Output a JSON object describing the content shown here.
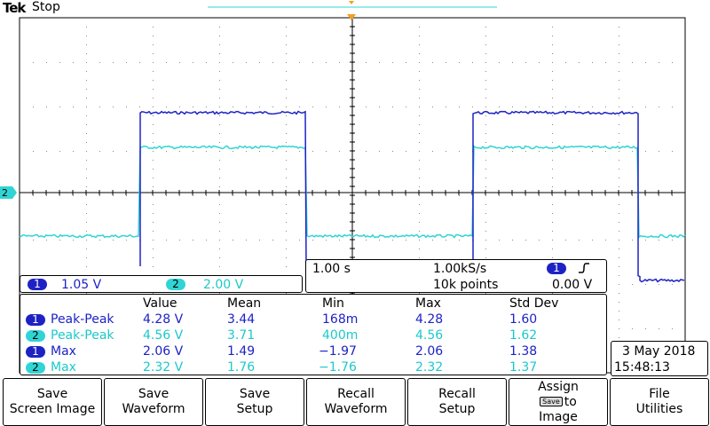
{
  "header": {
    "brand": "Tek",
    "state": "Stop"
  },
  "channels": {
    "ch1": {
      "badge": "1",
      "scale": "1.05 V",
      "color": "#1e22c4"
    },
    "ch2": {
      "badge": "2",
      "scale": "2.00 V",
      "color": "#31d4d4"
    }
  },
  "timebase": {
    "scale": "1.00 s",
    "sample_rate": "1.00kS/s",
    "record_length": "10k points",
    "trigger_source": "1",
    "trigger_slope_icon": "rising-edge-icon",
    "trigger_level": "0.00 V"
  },
  "measurements": {
    "columns": [
      "Value",
      "Mean",
      "Min",
      "Max",
      "Std Dev"
    ],
    "rows": [
      {
        "ch": "1",
        "name": "Peak-Peak",
        "value": "4.28 V",
        "mean": "3.44",
        "min": "168m",
        "max": "4.28",
        "std": "1.60"
      },
      {
        "ch": "2",
        "name": "Peak-Peak",
        "value": "4.56 V",
        "mean": "3.71",
        "min": "400m",
        "max": "4.56",
        "std": "1.62"
      },
      {
        "ch": "1",
        "name": "Max",
        "value": "2.06 V",
        "mean": "1.49",
        "min": "−1.97",
        "max": "2.06",
        "std": "1.38"
      },
      {
        "ch": "2",
        "name": "Max",
        "value": "2.32 V",
        "mean": "1.76",
        "min": "−1.76",
        "max": "2.32",
        "std": "1.37"
      }
    ]
  },
  "datetime": {
    "date": "3 May 2018",
    "time": "15:48:13"
  },
  "softkeys": [
    {
      "line1": "Save",
      "line2": "Screen Image"
    },
    {
      "line1": "Save",
      "line2": "Waveform"
    },
    {
      "line1": "Save",
      "line2": "Setup"
    },
    {
      "line1": "Recall",
      "line2": "Waveform"
    },
    {
      "line1": "Recall",
      "line2": "Setup"
    },
    {
      "line1": "Assign",
      "line2_icon": "Save",
      "line2": "to",
      "line3": "Image"
    },
    {
      "line1": "File",
      "line2": "Utilities"
    }
  ],
  "ch2_marker": "2"
}
